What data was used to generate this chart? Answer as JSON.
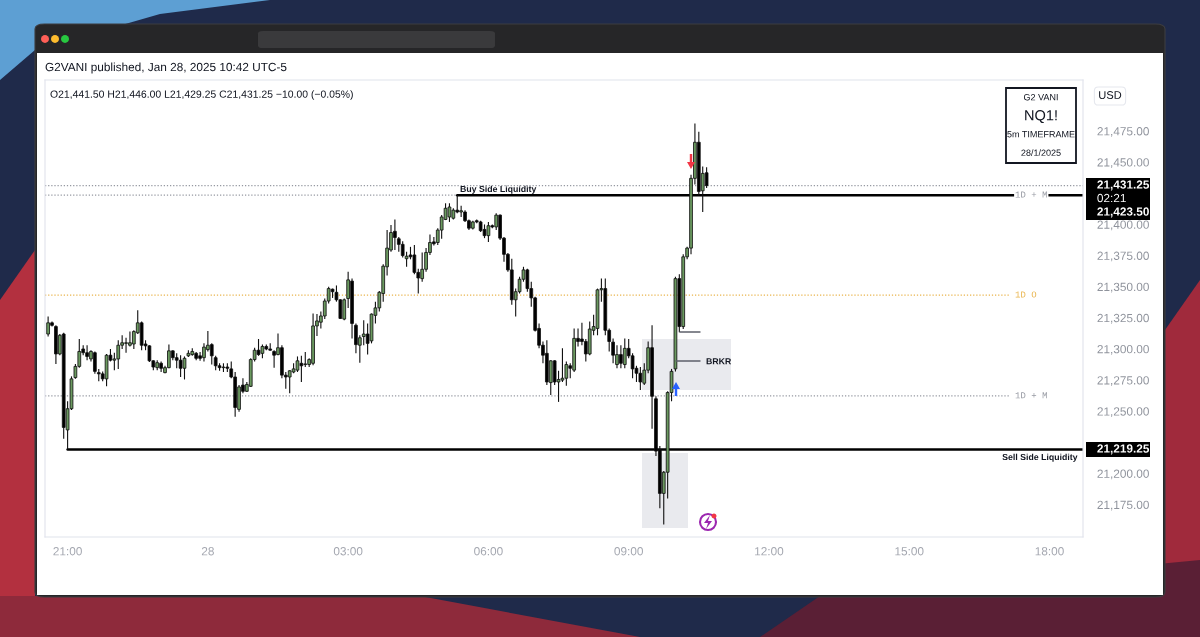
{
  "chart_data": {
    "type": "candlestick",
    "title": "G2VANI published, Jan 28, 2025 10:42 UTC-5",
    "subtitle": "O21,441.50 H21,446.00 L21,429.25 C21,431.25 −10.00 (−0.05%)",
    "ylabel": "USD",
    "x": [
      "2025-01-27T20:35",
      "2025-01-27T20:40",
      "2025-01-27T20:45",
      "2025-01-27T20:50",
      "2025-01-27T20:55",
      "2025-01-27T21:00",
      "2025-01-27T21:05",
      "2025-01-27T21:10",
      "2025-01-27T21:15",
      "2025-01-27T21:20",
      "2025-01-27T21:25",
      "2025-01-27T21:30",
      "2025-01-27T21:35",
      "2025-01-27T21:40",
      "2025-01-27T21:45",
      "2025-01-27T21:50",
      "2025-01-27T21:55",
      "2025-01-27T22:00",
      "2025-01-27T22:05",
      "2025-01-27T22:10",
      "2025-01-27T22:15",
      "2025-01-27T22:20",
      "2025-01-27T22:25",
      "2025-01-27T22:30",
      "2025-01-27T22:35",
      "2025-01-27T22:40",
      "2025-01-27T22:45",
      "2025-01-27T22:50",
      "2025-01-27T22:55",
      "2025-01-27T23:00",
      "2025-01-27T23:05",
      "2025-01-27T23:10",
      "2025-01-27T23:15",
      "2025-01-27T23:20",
      "2025-01-27T23:25",
      "2025-01-27T23:30",
      "2025-01-27T23:35",
      "2025-01-27T23:40",
      "2025-01-27T23:45",
      "2025-01-27T23:50",
      "2025-01-27T23:55",
      "2025-01-28T00:00",
      "2025-01-28T00:05",
      "2025-01-28T00:10",
      "2025-01-28T00:15",
      "2025-01-28T00:20",
      "2025-01-28T00:25",
      "2025-01-28T00:30",
      "2025-01-28T00:35",
      "2025-01-28T00:40",
      "2025-01-28T00:45",
      "2025-01-28T00:50",
      "2025-01-28T00:55",
      "2025-01-28T01:00",
      "2025-01-28T01:05",
      "2025-01-28T01:10",
      "2025-01-28T01:15",
      "2025-01-28T01:20",
      "2025-01-28T01:25",
      "2025-01-28T01:30",
      "2025-01-28T01:35",
      "2025-01-28T01:40",
      "2025-01-28T01:45",
      "2025-01-28T01:50",
      "2025-01-28T01:55",
      "2025-01-28T02:00",
      "2025-01-28T02:05",
      "2025-01-28T02:10",
      "2025-01-28T02:15",
      "2025-01-28T02:20",
      "2025-01-28T02:25",
      "2025-01-28T02:30",
      "2025-01-28T02:35",
      "2025-01-28T02:40",
      "2025-01-28T02:45",
      "2025-01-28T02:50",
      "2025-01-28T02:55",
      "2025-01-28T03:00",
      "2025-01-28T03:05",
      "2025-01-28T03:10",
      "2025-01-28T03:15",
      "2025-01-28T03:20",
      "2025-01-28T03:25",
      "2025-01-28T03:30",
      "2025-01-28T03:35",
      "2025-01-28T03:40",
      "2025-01-28T03:45",
      "2025-01-28T03:50",
      "2025-01-28T03:55",
      "2025-01-28T04:00",
      "2025-01-28T04:05",
      "2025-01-28T04:10",
      "2025-01-28T04:15",
      "2025-01-28T04:20",
      "2025-01-28T04:25",
      "2025-01-28T04:30",
      "2025-01-28T04:35",
      "2025-01-28T04:40",
      "2025-01-28T04:45",
      "2025-01-28T04:50",
      "2025-01-28T04:55",
      "2025-01-28T05:00",
      "2025-01-28T05:05",
      "2025-01-28T05:10",
      "2025-01-28T05:15",
      "2025-01-28T05:20",
      "2025-01-28T05:25",
      "2025-01-28T05:30",
      "2025-01-28T05:35",
      "2025-01-28T05:40",
      "2025-01-28T05:45",
      "2025-01-28T05:50",
      "2025-01-28T05:55",
      "2025-01-28T06:00",
      "2025-01-28T06:05",
      "2025-01-28T06:10",
      "2025-01-28T06:15",
      "2025-01-28T06:20",
      "2025-01-28T06:25",
      "2025-01-28T06:30",
      "2025-01-28T06:35",
      "2025-01-28T06:40",
      "2025-01-28T06:45",
      "2025-01-28T06:50",
      "2025-01-28T06:55",
      "2025-01-28T07:00",
      "2025-01-28T07:05",
      "2025-01-28T07:10",
      "2025-01-28T07:15",
      "2025-01-28T07:20",
      "2025-01-28T07:25",
      "2025-01-28T07:30",
      "2025-01-28T07:35",
      "2025-01-28T07:40",
      "2025-01-28T07:45",
      "2025-01-28T07:50",
      "2025-01-28T07:55",
      "2025-01-28T08:00",
      "2025-01-28T08:05",
      "2025-01-28T08:10",
      "2025-01-28T08:15",
      "2025-01-28T08:20",
      "2025-01-28T08:25",
      "2025-01-28T08:30",
      "2025-01-28T08:35",
      "2025-01-28T08:40",
      "2025-01-28T08:45",
      "2025-01-28T08:50",
      "2025-01-28T08:55",
      "2025-01-28T09:00",
      "2025-01-28T09:05",
      "2025-01-28T09:10",
      "2025-01-28T09:15",
      "2025-01-28T09:20",
      "2025-01-28T09:25",
      "2025-01-28T09:30",
      "2025-01-28T09:35",
      "2025-01-28T09:40",
      "2025-01-28T09:45",
      "2025-01-28T09:50",
      "2025-01-28T09:55",
      "2025-01-28T10:00",
      "2025-01-28T10:05",
      "2025-01-28T10:10",
      "2025-01-28T10:15",
      "2025-01-28T10:20",
      "2025-01-28T10:25",
      "2025-01-28T10:30",
      "2025-01-28T10:35",
      "2025-01-28T10:40"
    ],
    "ohlc": [
      [
        21312,
        21326,
        21310,
        21321
      ],
      [
        21321,
        21322,
        21318,
        21319
      ],
      [
        21318,
        21319,
        21288,
        21296
      ],
      [
        21296,
        21312,
        21295,
        21311
      ],
      [
        21312,
        21313,
        21228,
        21237
      ],
      [
        21235,
        21258,
        21219.25,
        21252
      ],
      [
        21252,
        21278,
        21251,
        21276
      ],
      [
        21277,
        21288,
        21276,
        21286
      ],
      [
        21286,
        21308,
        21285,
        21298
      ],
      [
        21300,
        21303,
        21295,
        21297
      ],
      [
        21297,
        21303,
        21291,
        21294
      ],
      [
        21292,
        21299,
        21290,
        21298
      ],
      [
        21297,
        21298,
        21280,
        21282
      ],
      [
        21281,
        21284,
        21274,
        21280
      ],
      [
        21280,
        21282,
        21274,
        21276
      ],
      [
        21276,
        21296,
        21270,
        21295
      ],
      [
        21295,
        21300,
        21290,
        21291
      ],
      [
        21291,
        21297,
        21283,
        21292
      ],
      [
        21292,
        21307,
        21284,
        21303
      ],
      [
        21303,
        21311,
        21300,
        21305
      ],
      [
        21304.5,
        21309,
        21297,
        21305
      ],
      [
        21303,
        21314,
        21302,
        21305
      ],
      [
        21304,
        21315,
        21300,
        21314
      ],
      [
        21313,
        21331,
        21312,
        21321
      ],
      [
        21321,
        21322,
        21299,
        21303
      ],
      [
        21304,
        21307,
        21299,
        21302.5
      ],
      [
        21302.5,
        21303,
        21289.5,
        21290.5
      ],
      [
        21290.5,
        21291,
        21283,
        21285.5
      ],
      [
        21285,
        21291,
        21283,
        21289
      ],
      [
        21288.5,
        21290,
        21281.5,
        21284.5
      ],
      [
        21281,
        21286.5,
        21280.5,
        21285
      ],
      [
        21285,
        21303.5,
        21284.5,
        21298.5
      ],
      [
        21298.5,
        21299,
        21291,
        21293
      ],
      [
        21293,
        21296.5,
        21284.5,
        21291
      ],
      [
        21291,
        21295,
        21277.5,
        21284.5
      ],
      [
        21284.5,
        21294,
        21275.5,
        21292.5
      ],
      [
        21294.5,
        21299,
        21293.5,
        21296.5
      ],
      [
        21295.5,
        21300.5,
        21294.5,
        21298
      ],
      [
        21296.5,
        21297.5,
        21291,
        21292.5
      ],
      [
        21294.5,
        21297.5,
        21290.5,
        21292.5
      ],
      [
        21293,
        21304.5,
        21290,
        21301.5
      ],
      [
        21299.5,
        21314.5,
        21298,
        21303
      ],
      [
        21303.5,
        21304.5,
        21287.5,
        21294.5
      ],
      [
        21293,
        21294.5,
        21283,
        21286.5
      ],
      [
        21286.5,
        21288.5,
        21282.5,
        21285
      ],
      [
        21285,
        21288.5,
        21281.5,
        21285.5
      ],
      [
        21285.5,
        21288.5,
        21281.5,
        21284.5
      ],
      [
        21284,
        21290,
        21276.5,
        21277.5
      ],
      [
        21277.5,
        21281.5,
        21245.5,
        21253
      ],
      [
        21251.5,
        21271,
        21249.5,
        21269.5
      ],
      [
        21271,
        21276.5,
        21264.5,
        21266
      ],
      [
        21266,
        21273.5,
        21265.5,
        21271.5
      ],
      [
        21270,
        21292.5,
        21269.5,
        21291.5
      ],
      [
        21291.5,
        21301,
        21290,
        21299
      ],
      [
        21299,
        21308,
        21294.5,
        21295.5
      ],
      [
        21296.5,
        21303.5,
        21292.5,
        21302
      ],
      [
        21302,
        21303.5,
        21299,
        21300
      ],
      [
        21300,
        21304.5,
        21298.5,
        21299
      ],
      [
        21298,
        21299,
        21285,
        21295
      ],
      [
        21295.5,
        21312.5,
        21295,
        21301
      ],
      [
        21301,
        21303,
        21276.5,
        21279
      ],
      [
        21279,
        21281.5,
        21268,
        21277.5
      ],
      [
        21277.5,
        21283,
        21264.5,
        21282.5
      ],
      [
        21281.5,
        21288.5,
        21280.5,
        21284
      ],
      [
        21283,
        21294,
        21281.5,
        21290.5
      ],
      [
        21288.5,
        21294.5,
        21273.5,
        21286.5
      ],
      [
        21287.5,
        21297.5,
        21285.5,
        21288
      ],
      [
        21287.5,
        21292.5,
        21285.5,
        21291.5
      ],
      [
        21288.5,
        21328.5,
        21287,
        21318.5
      ],
      [
        21318.5,
        21328,
        21310.5,
        21322.5
      ],
      [
        21321.5,
        21330,
        21316.5,
        21326.5
      ],
      [
        21326.5,
        21340.5,
        21324,
        21338.5
      ],
      [
        21338.5,
        21350,
        21336.5,
        21348.5
      ],
      [
        21348,
        21348.5,
        21341,
        21346
      ],
      [
        21345.5,
        21351,
        21338,
        21339.5
      ],
      [
        21339.5,
        21340,
        21324,
        21324.5
      ],
      [
        21324,
        21340.5,
        21323,
        21339.5
      ],
      [
        21340.5,
        21362,
        21333,
        21355.5
      ],
      [
        21354.5,
        21356.5,
        21308.5,
        21320.5
      ],
      [
        21319,
        21320.5,
        21296.5,
        21303.5
      ],
      [
        21303,
        21311,
        21289,
        21309
      ],
      [
        21310,
        21323,
        21303,
        21312
      ],
      [
        21312,
        21320.5,
        21295.5,
        21304.5
      ],
      [
        21306.5,
        21328.5,
        21304.5,
        21328
      ],
      [
        21327,
        21338,
        21320.5,
        21333
      ],
      [
        21333,
        21346.5,
        21330,
        21345.5
      ],
      [
        21344.5,
        21368,
        21338,
        21366.5
      ],
      [
        21366,
        21395.5,
        21359,
        21381
      ],
      [
        21379.5,
        21399.5,
        21378,
        21393.5
      ],
      [
        21394.5,
        21404,
        21379.5,
        21389.5
      ],
      [
        21388.5,
        21390,
        21378,
        21384
      ],
      [
        21384,
        21386.5,
        21373.5,
        21375
      ],
      [
        21372.5,
        21378,
        21366,
        21374.5
      ],
      [
        21375.5,
        21382,
        21372,
        21374
      ],
      [
        21375.5,
        21383.5,
        21360,
        21361.5
      ],
      [
        21361.5,
        21364.5,
        21344.5,
        21357
      ],
      [
        21356.5,
        21377.5,
        21354,
        21364
      ],
      [
        21364,
        21381,
        21362,
        21377.5
      ],
      [
        21377.5,
        21392,
        21375.5,
        21385.5
      ],
      [
        21386,
        21390,
        21383,
        21384.5
      ],
      [
        21385.5,
        21397,
        21383.5,
        21395.5
      ],
      [
        21395.5,
        21407.5,
        21388.5,
        21406
      ],
      [
        21404,
        21417,
        21403.5,
        21413
      ],
      [
        21406,
        21417,
        21402,
        21414
      ],
      [
        21405,
        21413,
        21404,
        21411.5
      ],
      [
        21411.5,
        21423.5,
        21409,
        21410
      ],
      [
        21410,
        21415,
        21406,
        21411
      ],
      [
        21410,
        21411.5,
        21402,
        21403
      ],
      [
        21403,
        21404,
        21395.5,
        21397
      ],
      [
        21397,
        21403,
        21396,
        21402
      ],
      [
        21403,
        21404,
        21401,
        21402
      ],
      [
        21402,
        21403,
        21394,
        21395
      ],
      [
        21396,
        21400,
        21389,
        21391
      ],
      [
        21391,
        21402,
        21386,
        21399
      ],
      [
        21399,
        21400,
        21397,
        21398
      ],
      [
        21398,
        21409,
        21395.5,
        21407.5
      ],
      [
        21407.5,
        21408,
        21387.5,
        21389
      ],
      [
        21389,
        21390,
        21370,
        21376
      ],
      [
        21376,
        21377,
        21362,
        21363.5
      ],
      [
        21363.5,
        21372.5,
        21335.5,
        21339.5
      ],
      [
        21339.5,
        21348.5,
        21326,
        21346
      ],
      [
        21346,
        21358,
        21344.5,
        21356
      ],
      [
        21356,
        21366,
        21354,
        21363.5
      ],
      [
        21363.5,
        21364.5,
        21346,
        21348.5
      ],
      [
        21348.5,
        21354,
        21334,
        21341
      ],
      [
        21341,
        21342,
        21314,
        21315
      ],
      [
        21316.5,
        21320.5,
        21300.5,
        21303
      ],
      [
        21303,
        21306,
        21288.5,
        21295
      ],
      [
        21296.5,
        21307,
        21271,
        21273.5
      ],
      [
        21273,
        21291,
        21263,
        21290.5
      ],
      [
        21290.5,
        21291,
        21271,
        21273.5
      ],
      [
        21273.5,
        21282.5,
        21257.5,
        21275.5
      ],
      [
        21275,
        21300.5,
        21273.5,
        21276.5
      ],
      [
        21276.5,
        21290,
        21270.5,
        21287.5
      ],
      [
        21286.5,
        21288.5,
        21276.5,
        21284.5
      ],
      [
        21283,
        21316.5,
        21281.5,
        21308.5
      ],
      [
        21308.5,
        21316.5,
        21302,
        21306
      ],
      [
        21308,
        21321,
        21303,
        21306
      ],
      [
        21306,
        21308,
        21290,
        21296
      ],
      [
        21296,
        21322,
        21295,
        21316
      ],
      [
        21315,
        21327.5,
        21311,
        21318
      ],
      [
        21316.5,
        21348.5,
        21311,
        21347.5
      ],
      [
        21347.5,
        21356.5,
        21338,
        21348.5
      ],
      [
        21348.5,
        21356.5,
        21311,
        21315
      ],
      [
        21315,
        21316.5,
        21298,
        21306
      ],
      [
        21305.5,
        21308.5,
        21288.5,
        21295
      ],
      [
        21287.5,
        21303,
        21284.5,
        21295.5
      ],
      [
        21295.5,
        21303,
        21284.5,
        21288.5
      ],
      [
        21287.5,
        21308.5,
        21284.5,
        21300.5
      ],
      [
        21300.5,
        21308,
        21292.5,
        21294.5
      ],
      [
        21294.5,
        21296.5,
        21276.5,
        21284
      ],
      [
        21284.5,
        21286.5,
        21273.5,
        21280.5
      ],
      [
        21280.5,
        21285.5,
        21267,
        21273.5
      ],
      [
        21272.5,
        21288.5,
        21271,
        21283
      ],
      [
        21283,
        21306,
        21280.5,
        21301
      ],
      [
        21301,
        21319,
        21236,
        21262
      ],
      [
        21260,
        21262,
        21214,
        21218
      ],
      [
        21219,
        21222,
        21172,
        21184
      ],
      [
        21184,
        21202,
        21159,
        21201
      ],
      [
        21201,
        21266,
        21180,
        21265
      ],
      [
        21265,
        21284,
        21258,
        21282
      ],
      [
        21284,
        21358,
        21282,
        21356.5
      ],
      [
        21356.5,
        21360,
        21313.5,
        21318
      ],
      [
        21318,
        21376,
        21316,
        21374
      ],
      [
        21374,
        21382,
        21372,
        21381
      ],
      [
        21381,
        21440,
        21376,
        21437
      ],
      [
        21437,
        21481,
        21432,
        21466
      ],
      [
        21466,
        21474.5,
        21423.5,
        21426.5
      ],
      [
        21427,
        21446.5,
        21410,
        21441
      ],
      [
        21441.5,
        21446,
        21429.25,
        21431.25
      ]
    ],
    "colors": [
      "#6b9a60",
      "#000000",
      "#000000",
      "#6b9a60",
      "#000000",
      "#6b9a60",
      "#6b9a60",
      "#6b9a60",
      "#6b9a60",
      "#000000",
      "#000000",
      "#6b9a60",
      "#000000",
      "#000000",
      "#000000",
      "#6b9a60",
      "#000000",
      "#6b9a60",
      "#6b9a60",
      "#6b9a60",
      "#6b9a60",
      "#6b9a60",
      "#6b9a60",
      "#6b9a60",
      "#000000",
      "#000000",
      "#000000",
      "#000000",
      "#6b9a60",
      "#000000",
      "#6b9a60",
      "#6b9a60",
      "#000000",
      "#000000",
      "#000000",
      "#6b9a60",
      "#6b9a60",
      "#6b9a60",
      "#000000",
      "#000000",
      "#6b9a60",
      "#6b9a60",
      "#000000",
      "#000000",
      "#000000",
      "#6b9a60",
      "#000000",
      "#000000",
      "#000000",
      "#6b9a60",
      "#000000",
      "#6b9a60",
      "#6b9a60",
      "#6b9a60",
      "#000000",
      "#6b9a60",
      "#000000",
      "#000000",
      "#000000",
      "#6b9a60",
      "#000000",
      "#000000",
      "#6b9a60",
      "#6b9a60",
      "#6b9a60",
      "#000000",
      "#6b9a60",
      "#6b9a60",
      "#6b9a60",
      "#6b9a60",
      "#6b9a60",
      "#6b9a60",
      "#6b9a60",
      "#000000",
      "#000000",
      "#000000",
      "#6b9a60",
      "#6b9a60",
      "#000000",
      "#000000",
      "#6b9a60",
      "#6b9a60",
      "#000000",
      "#6b9a60",
      "#6b9a60",
      "#6b9a60",
      "#6b9a60",
      "#6b9a60",
      "#6b9a60",
      "#000000",
      "#000000",
      "#000000",
      "#6b9a60",
      "#000000",
      "#000000",
      "#000000",
      "#6b9a60",
      "#6b9a60",
      "#6b9a60",
      "#000000",
      "#6b9a60",
      "#6b9a60",
      "#6b9a60",
      "#6b9a60",
      "#6b9a60",
      "#000000",
      "#6b9a60",
      "#000000",
      "#000000",
      "#6b9a60",
      "#000000",
      "#000000",
      "#000000",
      "#6b9a60",
      "#000000",
      "#6b9a60",
      "#000000",
      "#000000",
      "#000000",
      "#000000",
      "#6b9a60",
      "#6b9a60",
      "#6b9a60",
      "#000000",
      "#000000",
      "#000000",
      "#000000",
      "#000000",
      "#000000",
      "#6b9a60",
      "#000000",
      "#6b9a60",
      "#6b9a60",
      "#6b9a60",
      "#000000",
      "#6b9a60",
      "#000000",
      "#000000",
      "#000000",
      "#6b9a60",
      "#6b9a60",
      "#6b9a60",
      "#6b9a60",
      "#000000",
      "#000000",
      "#000000",
      "#6b9a60",
      "#000000",
      "#6b9a60",
      "#000000",
      "#000000",
      "#000000",
      "#000000",
      "#6b9a60",
      "#6b9a60",
      "#000000",
      "#000000",
      "#000000",
      "#6b9a60",
      "#6b9a60",
      "#6b9a60",
      "#6b9a60",
      "#000000",
      "#6b9a60",
      "#6b9a60",
      "#6b9a60",
      "#6b9a60",
      "#000000",
      "#6b9a60",
      "#000000"
    ],
    "xlim": [
      "2025-01-27T20:31",
      "2025-01-28T18:43"
    ],
    "xticks": [
      {
        "value": "2025-01-27T21:00",
        "label": "21:00"
      },
      {
        "value": "2025-01-28T00:00",
        "label": "28"
      },
      {
        "value": "2025-01-28T03:00",
        "label": "03:00"
      },
      {
        "value": "2025-01-28T06:00",
        "label": "06:00"
      },
      {
        "value": "2025-01-28T09:00",
        "label": "09:00"
      },
      {
        "value": "2025-01-28T12:00",
        "label": "12:00"
      },
      {
        "value": "2025-01-28T15:00",
        "label": "15:00"
      },
      {
        "value": "2025-01-28T18:00",
        "label": "18:00"
      }
    ],
    "ylim": [
      21149,
      21516
    ],
    "yticks": [
      {
        "value": 21175,
        "label": "21,175.00"
      },
      {
        "value": 21200,
        "label": "21,200.00"
      },
      {
        "value": 21250,
        "label": "21,250.00"
      },
      {
        "value": 21275,
        "label": "21,275.00"
      },
      {
        "value": 21300,
        "label": "21,300.00"
      },
      {
        "value": 21325,
        "label": "21,325.00"
      },
      {
        "value": 21350,
        "label": "21,350.00"
      },
      {
        "value": 21375,
        "label": "21,375.00"
      },
      {
        "value": 21400,
        "label": "21,400.00"
      },
      {
        "value": 21450,
        "label": "21,450.00"
      },
      {
        "value": 21475,
        "label": "21,475.00"
      }
    ],
    "ref_lines": [
      {
        "axis": "y",
        "value": 21431.25,
        "label": "21,431.25",
        "color": "#9598a1",
        "line_style": "dotted"
      },
      {
        "axis": "y",
        "value": 21423.5,
        "label": "21,423.50",
        "color": "#000000",
        "line_style": "solid"
      },
      {
        "axis": "y",
        "value": 21423.5,
        "label": "1D + M",
        "color": "#9598a1",
        "line_style": "dotted"
      },
      {
        "axis": "y",
        "value": 21343.25,
        "label": "1D O",
        "color": "#e9b44c",
        "line_style": "dotted"
      },
      {
        "axis": "y",
        "value": 21262.25,
        "label": "1D + M",
        "color": "#9598a1",
        "line_style": "dotted"
      },
      {
        "axis": "y",
        "value": 21219.25,
        "label": "21,219.25",
        "color": "#000000",
        "line_style": "solid"
      }
    ],
    "annotations": [
      "G2 VANI\nNQ1!\n5m TIMEFRAME\n28/1/2025",
      "02:21",
      "BRKR",
      {
        "text": "Buy Side Liquidity",
        "x": "2025-01-28T05:20",
        "y": 21423.5
      },
      {
        "text": "Sell Side Liquidity",
        "x": "2025-01-28T18:36",
        "y": 21219.25
      }
    ]
  }
}
